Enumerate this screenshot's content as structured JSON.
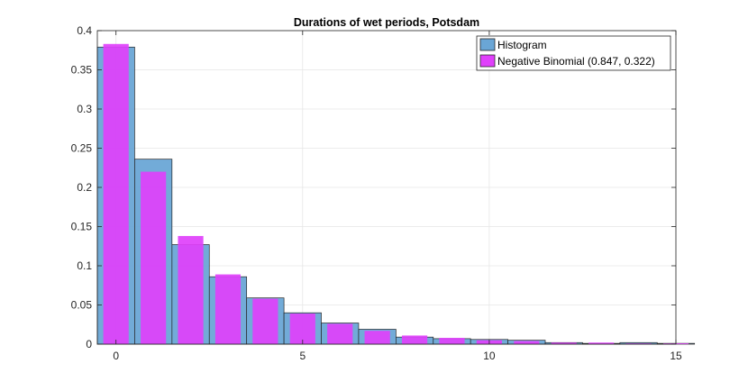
{
  "chart_data": {
    "type": "bar",
    "title": "Durations of wet periods, Potsdam",
    "xlabel": "",
    "ylabel": "",
    "xlim": [
      -0.5,
      15
    ],
    "ylim": [
      0,
      0.4
    ],
    "xticks": [
      0,
      5,
      10,
      15
    ],
    "yticks": [
      0,
      0.05,
      0.1,
      0.15,
      0.2,
      0.25,
      0.3,
      0.35,
      0.4
    ],
    "ytick_labels": [
      "0",
      "0.05",
      "0.1",
      "0.15",
      "0.2",
      "0.25",
      "0.3",
      "0.35",
      "0.4"
    ],
    "xtick_labels": [
      "0",
      "5",
      "10",
      "15"
    ],
    "grid": true,
    "legend_position": "top-right",
    "x": [
      0,
      1,
      2,
      3,
      4,
      5,
      6,
      7,
      8,
      9,
      10,
      11,
      12,
      13,
      14,
      15
    ],
    "series": [
      {
        "name": "Histogram",
        "color": "#6aa6d6",
        "values": [
          0.379,
          0.236,
          0.127,
          0.086,
          0.059,
          0.04,
          0.027,
          0.019,
          0.009,
          0.007,
          0.006,
          0.005,
          0.002,
          0.001,
          0.002,
          0.001
        ]
      },
      {
        "name": "Negative Binomial (0.847, 0.322)",
        "color": "#e040fb",
        "values": [
          0.383,
          0.22,
          0.138,
          0.089,
          0.058,
          0.039,
          0.026,
          0.017,
          0.011,
          0.008,
          0.005,
          0.004,
          0.002,
          0.002,
          0.001,
          0.001
        ]
      }
    ]
  }
}
